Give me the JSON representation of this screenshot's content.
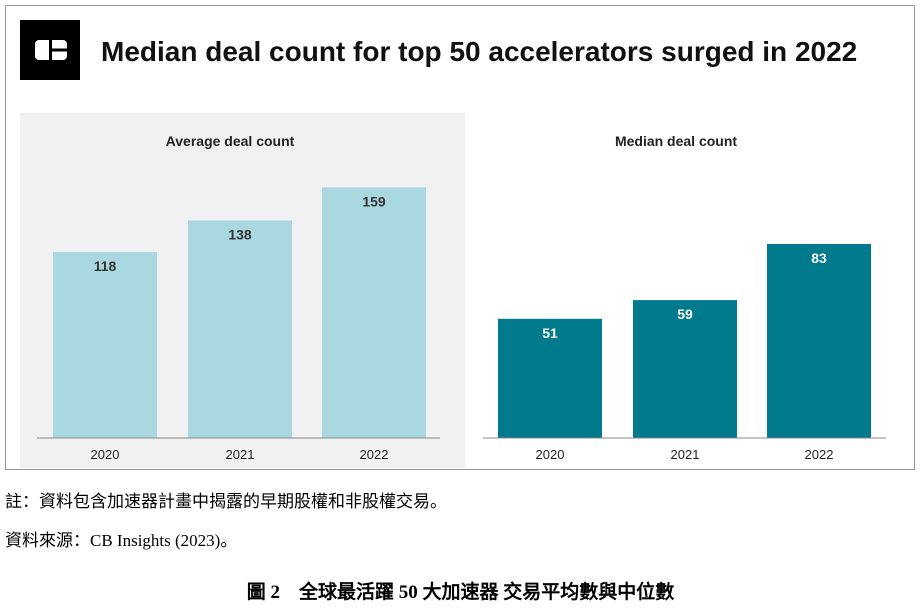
{
  "headline": "Median deal count for top 50 accelerators surged in 2022",
  "logo_icon": "cb-insights-logo-icon",
  "colors": {
    "light_bar": "#aad8e1",
    "dark_bar": "#007a8c",
    "panel_bg": "#f1f1f1"
  },
  "chart_data": [
    {
      "type": "bar",
      "title": "Average deal count",
      "categories": [
        "2020",
        "2021",
        "2022"
      ],
      "values": [
        118,
        138,
        159
      ],
      "ylim": [
        0,
        170
      ],
      "grid": false,
      "data_labels": true
    },
    {
      "type": "bar",
      "title": "Median deal count",
      "categories": [
        "2020",
        "2021",
        "2022"
      ],
      "values": [
        51,
        59,
        83
      ],
      "ylim": [
        0,
        130
      ],
      "grid": false,
      "data_labels": true
    }
  ],
  "notes": {
    "note": "註：資料包含加速器計畫中揭露的早期股權和非股權交易。",
    "source": "資料來源：CB Insights (2023)。"
  },
  "caption": "圖 2　全球最活躍 50 大加速器 交易平均數與中位數"
}
